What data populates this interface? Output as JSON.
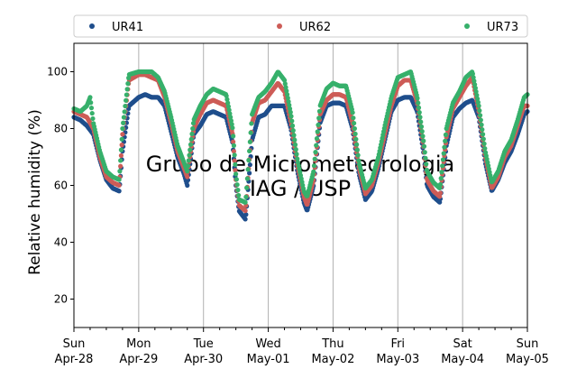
{
  "chart_data": {
    "type": "scatter",
    "title": "",
    "ylabel": "Relative humidity (%)",
    "xlabel": "",
    "watermark": [
      "Grupo de Micrometeorologia",
      "IAG / USP"
    ],
    "x_range": [
      "2019-04-28 00:00",
      "2019-05-05 00:00"
    ],
    "ylim": [
      10,
      110
    ],
    "yticks": [
      20,
      40,
      60,
      80,
      100
    ],
    "xticks": [
      {
        "day": "Sun",
        "date": "Apr-28"
      },
      {
        "day": "Mon",
        "date": "Apr-29"
      },
      {
        "day": "Tue",
        "date": "Apr-30"
      },
      {
        "day": "Wed",
        "date": "May-01"
      },
      {
        "day": "Thu",
        "date": "May-02"
      },
      {
        "day": "Fri",
        "date": "May-03"
      },
      {
        "day": "Sat",
        "date": "May-04"
      },
      {
        "day": "Sun",
        "date": "May-05"
      }
    ],
    "grid": "vertical",
    "legend_position": "top",
    "series": [
      {
        "name": "UR41",
        "color": "#1f4e8c",
        "points": [
          [
            0.0,
            84
          ],
          [
            0.1,
            83
          ],
          [
            0.2,
            81
          ],
          [
            0.3,
            78
          ],
          [
            0.4,
            69
          ],
          [
            0.5,
            62
          ],
          [
            0.6,
            59
          ],
          [
            0.7,
            58
          ],
          [
            0.75,
            72
          ],
          [
            0.85,
            88
          ],
          [
            1.0,
            91
          ],
          [
            1.1,
            92
          ],
          [
            1.2,
            91
          ],
          [
            1.3,
            91
          ],
          [
            1.4,
            88
          ],
          [
            1.5,
            79
          ],
          [
            1.6,
            70
          ],
          [
            1.7,
            64
          ],
          [
            1.75,
            60
          ],
          [
            1.85,
            78
          ],
          [
            1.95,
            81
          ],
          [
            2.05,
            85
          ],
          [
            2.15,
            86
          ],
          [
            2.25,
            85
          ],
          [
            2.35,
            84
          ],
          [
            2.45,
            75
          ],
          [
            2.5,
            60
          ],
          [
            2.55,
            51
          ],
          [
            2.65,
            48
          ],
          [
            2.75,
            76
          ],
          [
            2.85,
            84
          ],
          [
            2.95,
            85
          ],
          [
            3.05,
            88
          ],
          [
            3.15,
            88
          ],
          [
            3.25,
            88
          ],
          [
            3.35,
            80
          ],
          [
            3.45,
            65
          ],
          [
            3.55,
            54
          ],
          [
            3.6,
            51
          ],
          [
            3.7,
            60
          ],
          [
            3.8,
            82
          ],
          [
            3.9,
            88
          ],
          [
            4.0,
            89
          ],
          [
            4.1,
            89
          ],
          [
            4.2,
            88
          ],
          [
            4.3,
            80
          ],
          [
            4.4,
            64
          ],
          [
            4.5,
            55
          ],
          [
            4.6,
            58
          ],
          [
            4.7,
            66
          ],
          [
            4.8,
            76
          ],
          [
            4.9,
            86
          ],
          [
            5.0,
            90
          ],
          [
            5.1,
            91
          ],
          [
            5.2,
            91
          ],
          [
            5.3,
            86
          ],
          [
            5.4,
            71
          ],
          [
            5.45,
            60
          ],
          [
            5.55,
            56
          ],
          [
            5.65,
            54
          ],
          [
            5.75,
            74
          ],
          [
            5.85,
            84
          ],
          [
            5.95,
            87
          ],
          [
            6.05,
            89
          ],
          [
            6.15,
            90
          ],
          [
            6.25,
            84
          ],
          [
            6.35,
            68
          ],
          [
            6.45,
            58
          ],
          [
            6.55,
            62
          ],
          [
            6.65,
            68
          ],
          [
            6.75,
            72
          ],
          [
            6.85,
            78
          ],
          [
            6.95,
            85
          ],
          [
            7.0,
            86
          ]
        ]
      },
      {
        "name": "UR62",
        "color": "#cd5c57",
        "points": [
          [
            0.0,
            86
          ],
          [
            0.1,
            85
          ],
          [
            0.2,
            84
          ],
          [
            0.3,
            80
          ],
          [
            0.4,
            70
          ],
          [
            0.5,
            63
          ],
          [
            0.6,
            61
          ],
          [
            0.7,
            60
          ],
          [
            0.75,
            78
          ],
          [
            0.85,
            97
          ],
          [
            1.0,
            99
          ],
          [
            1.1,
            99
          ],
          [
            1.2,
            98
          ],
          [
            1.3,
            97
          ],
          [
            1.4,
            91
          ],
          [
            1.5,
            82
          ],
          [
            1.6,
            72
          ],
          [
            1.7,
            66
          ],
          [
            1.75,
            63
          ],
          [
            1.85,
            80
          ],
          [
            1.95,
            85
          ],
          [
            2.05,
            89
          ],
          [
            2.15,
            90
          ],
          [
            2.25,
            89
          ],
          [
            2.35,
            88
          ],
          [
            2.45,
            78
          ],
          [
            2.5,
            62
          ],
          [
            2.55,
            53
          ],
          [
            2.65,
            51
          ],
          [
            2.75,
            82
          ],
          [
            2.85,
            89
          ],
          [
            2.95,
            90
          ],
          [
            3.05,
            93
          ],
          [
            3.15,
            96
          ],
          [
            3.25,
            93
          ],
          [
            3.35,
            82
          ],
          [
            3.45,
            67
          ],
          [
            3.55,
            56
          ],
          [
            3.6,
            53
          ],
          [
            3.7,
            62
          ],
          [
            3.8,
            85
          ],
          [
            3.9,
            90
          ],
          [
            4.0,
            92
          ],
          [
            4.1,
            92
          ],
          [
            4.2,
            91
          ],
          [
            4.3,
            82
          ],
          [
            4.4,
            66
          ],
          [
            4.5,
            57
          ],
          [
            4.6,
            60
          ],
          [
            4.7,
            68
          ],
          [
            4.8,
            78
          ],
          [
            4.9,
            88
          ],
          [
            5.0,
            95
          ],
          [
            5.1,
            97
          ],
          [
            5.2,
            97
          ],
          [
            5.3,
            89
          ],
          [
            5.4,
            73
          ],
          [
            5.45,
            62
          ],
          [
            5.55,
            58
          ],
          [
            5.65,
            56
          ],
          [
            5.75,
            77
          ],
          [
            5.85,
            87
          ],
          [
            5.95,
            91
          ],
          [
            6.05,
            95
          ],
          [
            6.15,
            98
          ],
          [
            6.25,
            86
          ],
          [
            6.35,
            70
          ],
          [
            6.45,
            59
          ],
          [
            6.55,
            63
          ],
          [
            6.65,
            70
          ],
          [
            6.75,
            74
          ],
          [
            6.85,
            81
          ],
          [
            6.95,
            88
          ],
          [
            7.0,
            88
          ]
        ]
      },
      {
        "name": "UR73",
        "color": "#36b06b",
        "points": [
          [
            0.0,
            87
          ],
          [
            0.1,
            86
          ],
          [
            0.2,
            88
          ],
          [
            0.25,
            91
          ],
          [
            0.3,
            82
          ],
          [
            0.4,
            72
          ],
          [
            0.5,
            65
          ],
          [
            0.6,
            63
          ],
          [
            0.7,
            62
          ],
          [
            0.75,
            80
          ],
          [
            0.85,
            99
          ],
          [
            1.0,
            100
          ],
          [
            1.1,
            100
          ],
          [
            1.2,
            100
          ],
          [
            1.3,
            98
          ],
          [
            1.4,
            93
          ],
          [
            1.5,
            84
          ],
          [
            1.6,
            74
          ],
          [
            1.7,
            68
          ],
          [
            1.75,
            65
          ],
          [
            1.85,
            83
          ],
          [
            1.95,
            88
          ],
          [
            2.05,
            92
          ],
          [
            2.15,
            94
          ],
          [
            2.25,
            93
          ],
          [
            2.35,
            92
          ],
          [
            2.45,
            80
          ],
          [
            2.5,
            64
          ],
          [
            2.55,
            55
          ],
          [
            2.65,
            54
          ],
          [
            2.75,
            85
          ],
          [
            2.85,
            91
          ],
          [
            2.95,
            93
          ],
          [
            3.05,
            96
          ],
          [
            3.15,
            100
          ],
          [
            3.25,
            97
          ],
          [
            3.35,
            85
          ],
          [
            3.45,
            69
          ],
          [
            3.55,
            58
          ],
          [
            3.6,
            56
          ],
          [
            3.7,
            65
          ],
          [
            3.8,
            88
          ],
          [
            3.9,
            94
          ],
          [
            4.0,
            96
          ],
          [
            4.1,
            95
          ],
          [
            4.2,
            95
          ],
          [
            4.3,
            86
          ],
          [
            4.4,
            68
          ],
          [
            4.5,
            59
          ],
          [
            4.6,
            62
          ],
          [
            4.7,
            70
          ],
          [
            4.8,
            81
          ],
          [
            4.9,
            91
          ],
          [
            5.0,
            98
          ],
          [
            5.1,
            99
          ],
          [
            5.2,
            100
          ],
          [
            5.3,
            91
          ],
          [
            5.4,
            75
          ],
          [
            5.45,
            65
          ],
          [
            5.55,
            61
          ],
          [
            5.65,
            59
          ],
          [
            5.75,
            80
          ],
          [
            5.85,
            89
          ],
          [
            5.95,
            93
          ],
          [
            6.05,
            98
          ],
          [
            6.15,
            100
          ],
          [
            6.25,
            88
          ],
          [
            6.35,
            72
          ],
          [
            6.45,
            61
          ],
          [
            6.55,
            65
          ],
          [
            6.65,
            72
          ],
          [
            6.75,
            76
          ],
          [
            6.85,
            83
          ],
          [
            6.95,
            91
          ],
          [
            7.0,
            92
          ]
        ]
      }
    ]
  }
}
